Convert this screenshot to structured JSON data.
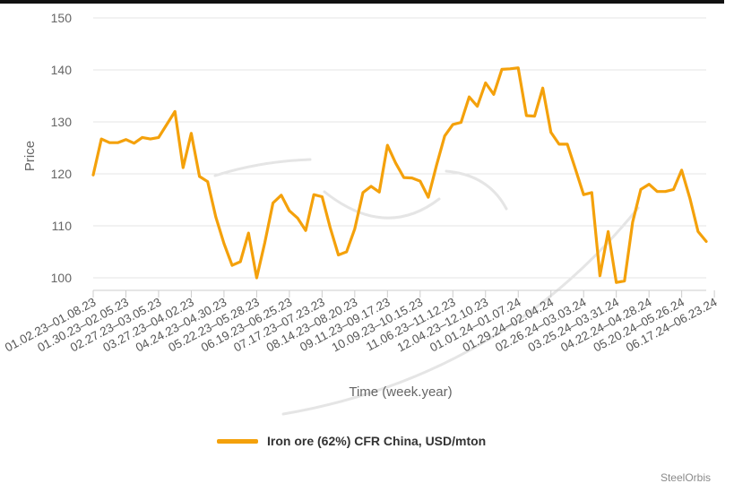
{
  "chart_data": {
    "type": "line",
    "title": "",
    "xlabel": "Time (week.year)",
    "ylabel": "Price",
    "ylim": [
      100,
      150
    ],
    "y_ticks": [
      100,
      110,
      120,
      130,
      140,
      150
    ],
    "grid": true,
    "legend_position": "bottom",
    "x_tick_labels": [
      "01.02.23–01.08.23",
      "01.30.23–02.05.23",
      "02.27.23–03.05.23",
      "03.27.23–04.02.23",
      "04.24.23–04.30.23",
      "05.22.23–05.28.23",
      "06.19.23–06.25.23",
      "07.17.23–07.23.23",
      "08.14.23–08.20.23",
      "09.11.23–09.17.23",
      "10.09.23–10.15.23",
      "11.06.23–11.12.23",
      "12.04.23–12.10.23",
      "01.01.24–01.07.24",
      "01.29.24–02.04.24",
      "02.26.24–03.03.24",
      "03.25.24–03.31.24",
      "04.22.24–04.28.24",
      "05.20.24–05.26.24",
      "06.17.24–06.23.24"
    ],
    "x_tick_index": [
      0,
      4,
      8,
      12,
      16,
      20,
      24,
      28,
      32,
      36,
      40,
      44,
      48,
      52,
      56,
      60,
      64,
      68,
      72,
      76
    ],
    "series": [
      {
        "name": "Iron ore (62%) CFR China, USD/mton",
        "color": "#f4a10b",
        "values": [
          119.8,
          126.7,
          126.0,
          126.0,
          126.6,
          125.9,
          127.0,
          126.7,
          127.0,
          129.5,
          132.0,
          121.2,
          127.8,
          119.5,
          118.5,
          111.7,
          106.6,
          102.4,
          103.1,
          108.6,
          100.0,
          106.8,
          114.4,
          115.9,
          112.9,
          111.5,
          109.1,
          116.0,
          115.6,
          109.6,
          104.4,
          105.0,
          109.4,
          116.4,
          117.6,
          116.5,
          125.5,
          122.1,
          119.3,
          119.2,
          118.6,
          115.5,
          121.6,
          127.3,
          129.5,
          129.9,
          134.8,
          133.0,
          137.5,
          135.3,
          140.1,
          140.2,
          140.4,
          131.2,
          131.1,
          136.5,
          128.0,
          125.7,
          125.7,
          120.9,
          116.0,
          116.4,
          100.4,
          108.9,
          99.1,
          99.4,
          110.7,
          117.0,
          118.0,
          116.6,
          116.6,
          117.0,
          120.7,
          115.3,
          108.9,
          107.0
        ]
      }
    ]
  },
  "credit": "SteelOrbis"
}
